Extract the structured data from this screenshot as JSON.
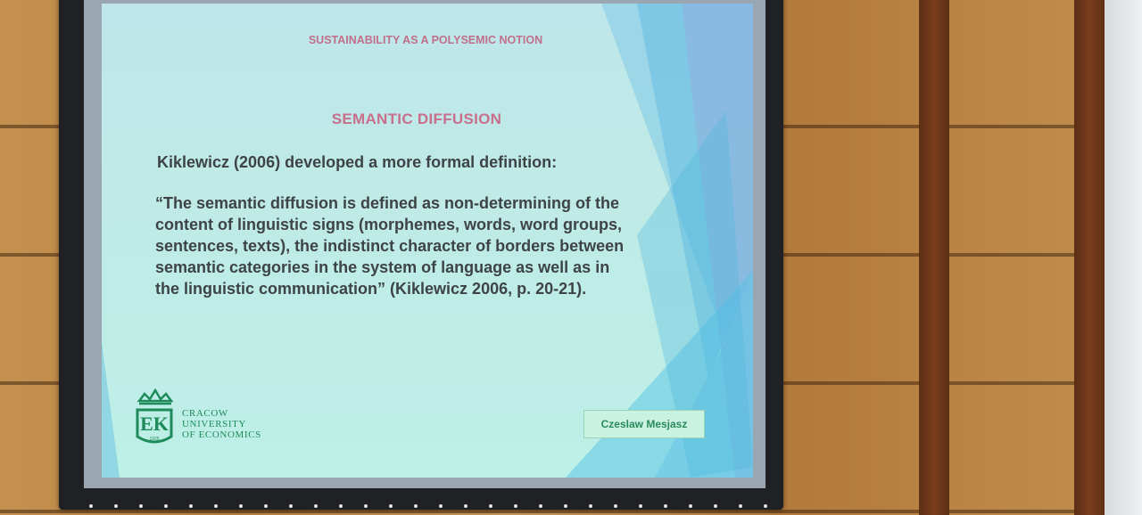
{
  "slide": {
    "title": "SUSTAINABILITY AS A POLYSEMIC NOTION",
    "heading": "SEMANTIC DIFFUSION",
    "intro": "Kiklewicz (2006) developed a more formal definition:",
    "quote": "“The semantic diffusion is defined as non-determining of the\ncontent of linguistic signs (morphemes, words, word groups,\nsentences, texts), the indistinct character of borders between\nsemantic categories in the system of language as well as in\nthe linguistic communication” (Kiklewicz 2006, p. 20-21).",
    "logo": {
      "line1": "CRACOW",
      "line2": "UNIVERSITY",
      "line3": "OF ECONOMICS",
      "monogram": "EK",
      "year": "1925"
    },
    "author": "Czeslaw Mesjasz"
  },
  "colors": {
    "title": "#c0708a",
    "heading": "#c86f8c",
    "body_text": "#3e4446",
    "logo_green": "#1f8a5a",
    "slide_background": "#bfeae6",
    "wall_wood": "#b98847"
  }
}
